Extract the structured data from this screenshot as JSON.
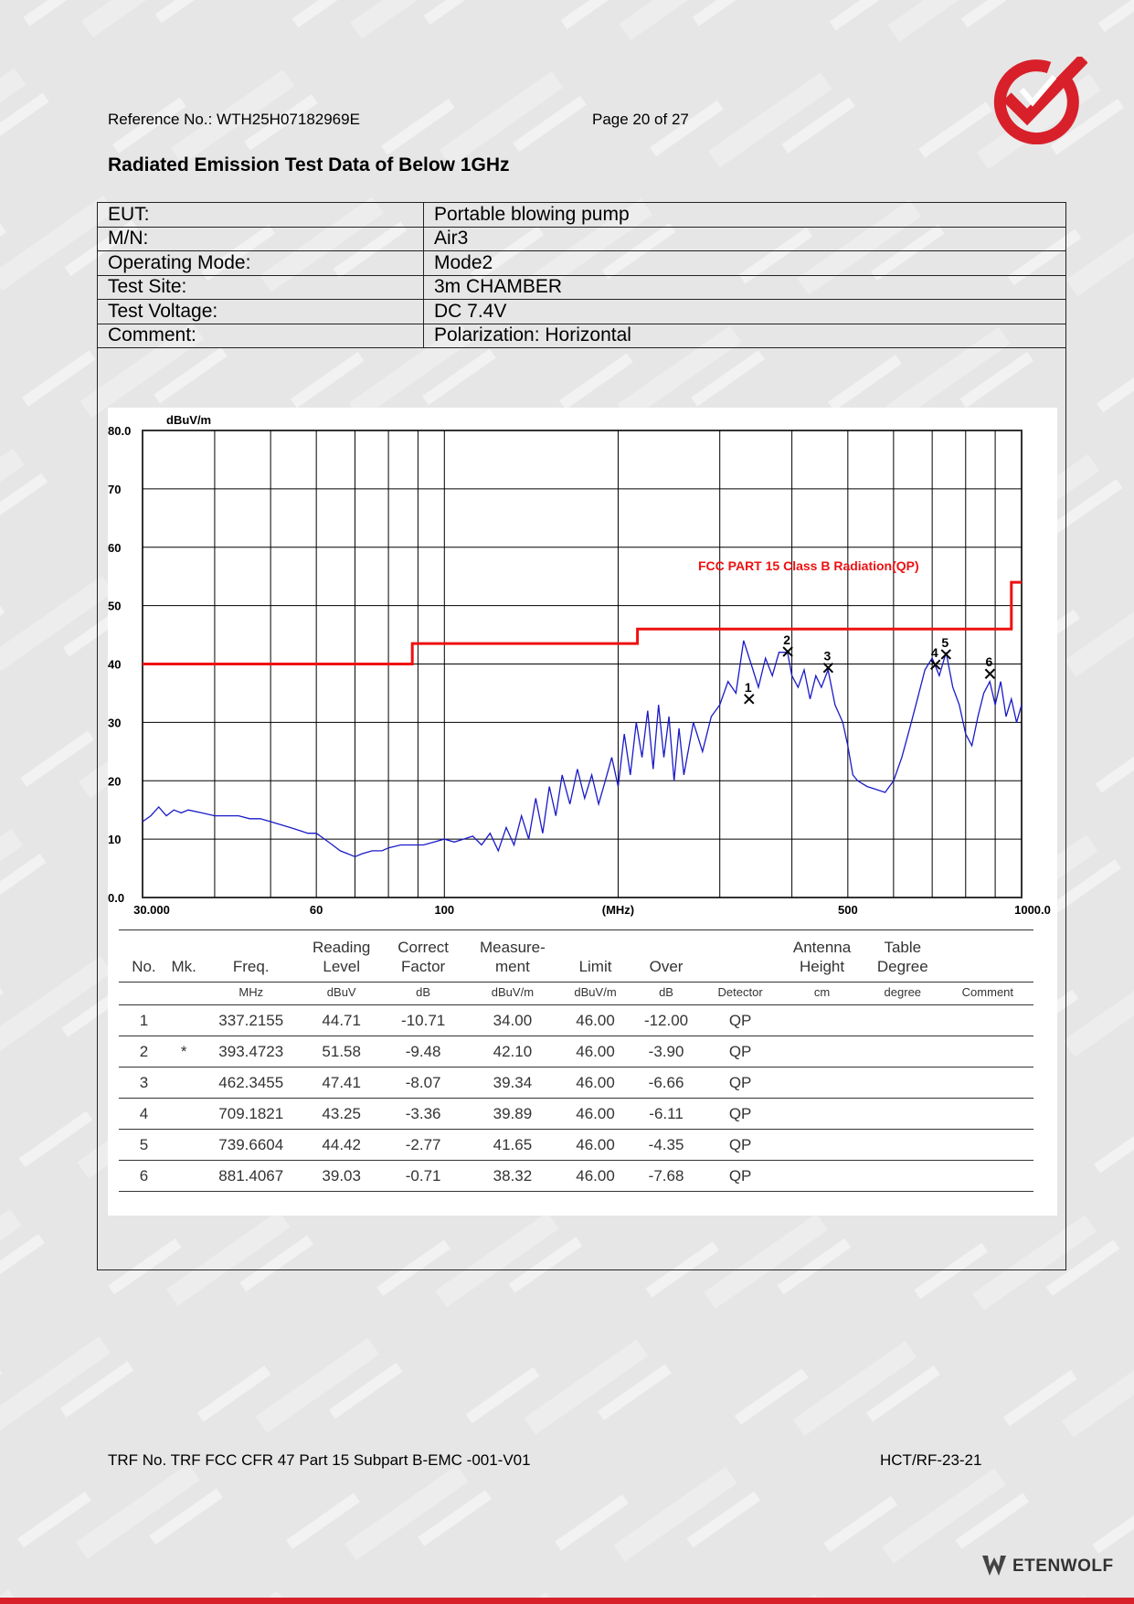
{
  "header": {
    "reference": "Reference No.: WTH25H07182969E",
    "page": "Page 20 of 27"
  },
  "title": "Radiated Emission Test Data of Below 1GHz",
  "info": [
    {
      "key": "EUT:",
      "value": "Portable blowing pump"
    },
    {
      "key": "M/N:",
      "value": "Air3"
    },
    {
      "key": "Operating Mode:",
      "value": "Mode2"
    },
    {
      "key": "Test Site:",
      "value": "3m CHAMBER"
    },
    {
      "key": "Test Voltage:",
      "value": "DC 7.4V"
    },
    {
      "key": "Comment:",
      "value": "Polarization: Horizontal"
    }
  ],
  "chart_data": {
    "type": "line",
    "ylabel": "dBuV/m",
    "xlabel": "(MHz)",
    "x_scale": "log",
    "xlim": [
      30,
      1000
    ],
    "ylim": [
      0,
      80
    ],
    "x_tick_labels": [
      "30.000",
      "60",
      "100",
      "(MHz)",
      "500",
      "1000.0"
    ],
    "x_tick_values": [
      30,
      60,
      100,
      200,
      500,
      1000
    ],
    "y_tick_labels": [
      "0.0",
      "10",
      "20",
      "30",
      "40",
      "50",
      "60",
      "70",
      "80.0"
    ],
    "y_tick_values": [
      0,
      10,
      20,
      30,
      40,
      50,
      60,
      70,
      80
    ],
    "limit_label": "FCC PART 15 Class B Radiation(QP)",
    "limit_color": "#ee1111",
    "trace_color": "#1a1ac8",
    "limit_line": [
      [
        30,
        40
      ],
      [
        88,
        40
      ],
      [
        88,
        43.5
      ],
      [
        216,
        43.5
      ],
      [
        216,
        46
      ],
      [
        960,
        46
      ],
      [
        960,
        54
      ],
      [
        1000,
        54
      ]
    ],
    "trace": [
      [
        30,
        13
      ],
      [
        31,
        14
      ],
      [
        32,
        15.5
      ],
      [
        33,
        14
      ],
      [
        34,
        15
      ],
      [
        35,
        14.5
      ],
      [
        36,
        15
      ],
      [
        38,
        14.5
      ],
      [
        40,
        14
      ],
      [
        42,
        14
      ],
      [
        44,
        14
      ],
      [
        46,
        13.5
      ],
      [
        48,
        13.5
      ],
      [
        50,
        13
      ],
      [
        52,
        12.5
      ],
      [
        54,
        12
      ],
      [
        56,
        11.5
      ],
      [
        58,
        11
      ],
      [
        60,
        11
      ],
      [
        62,
        10
      ],
      [
        64,
        9
      ],
      [
        66,
        8
      ],
      [
        68,
        7.5
      ],
      [
        70,
        7
      ],
      [
        72,
        7.5
      ],
      [
        75,
        8
      ],
      [
        78,
        8
      ],
      [
        80,
        8.5
      ],
      [
        84,
        9
      ],
      [
        88,
        9
      ],
      [
        92,
        9
      ],
      [
        96,
        9.5
      ],
      [
        100,
        10
      ],
      [
        104,
        9.5
      ],
      [
        108,
        10
      ],
      [
        112,
        10.5
      ],
      [
        116,
        9
      ],
      [
        120,
        11
      ],
      [
        124,
        8
      ],
      [
        128,
        12
      ],
      [
        132,
        9
      ],
      [
        136,
        14
      ],
      [
        140,
        10
      ],
      [
        144,
        17
      ],
      [
        148,
        11
      ],
      [
        152,
        19
      ],
      [
        156,
        14
      ],
      [
        160,
        21
      ],
      [
        165,
        16
      ],
      [
        170,
        22
      ],
      [
        175,
        17
      ],
      [
        180,
        21
      ],
      [
        185,
        16
      ],
      [
        190,
        20
      ],
      [
        195,
        24
      ],
      [
        200,
        19
      ],
      [
        205,
        28
      ],
      [
        210,
        21
      ],
      [
        215,
        30
      ],
      [
        220,
        24
      ],
      [
        225,
        32
      ],
      [
        230,
        22
      ],
      [
        235,
        33
      ],
      [
        240,
        24
      ],
      [
        245,
        31
      ],
      [
        250,
        20
      ],
      [
        255,
        29
      ],
      [
        260,
        21
      ],
      [
        270,
        30
      ],
      [
        280,
        25
      ],
      [
        290,
        31
      ],
      [
        300,
        33
      ],
      [
        310,
        37
      ],
      [
        320,
        35
      ],
      [
        330,
        44
      ],
      [
        340,
        40
      ],
      [
        350,
        36
      ],
      [
        360,
        41
      ],
      [
        370,
        38
      ],
      [
        380,
        42
      ],
      [
        393,
        42
      ],
      [
        400,
        38
      ],
      [
        410,
        36
      ],
      [
        420,
        39
      ],
      [
        430,
        34
      ],
      [
        440,
        38
      ],
      [
        450,
        36
      ],
      [
        462,
        39
      ],
      [
        475,
        33
      ],
      [
        490,
        30
      ],
      [
        500,
        26
      ],
      [
        510,
        21
      ],
      [
        520,
        20
      ],
      [
        540,
        19
      ],
      [
        560,
        18.5
      ],
      [
        580,
        18
      ],
      [
        600,
        20
      ],
      [
        620,
        24
      ],
      [
        640,
        29
      ],
      [
        660,
        34
      ],
      [
        680,
        39
      ],
      [
        700,
        41
      ],
      [
        720,
        38
      ],
      [
        740,
        42
      ],
      [
        760,
        36
      ],
      [
        780,
        33
      ],
      [
        800,
        28
      ],
      [
        820,
        26
      ],
      [
        840,
        31
      ],
      [
        860,
        35
      ],
      [
        881,
        37
      ],
      [
        900,
        33
      ],
      [
        920,
        37
      ],
      [
        940,
        31
      ],
      [
        960,
        34
      ],
      [
        980,
        30
      ],
      [
        1000,
        33
      ]
    ],
    "markers": [
      {
        "label": "1",
        "x": 337.2155,
        "y": 34.0
      },
      {
        "label": "2",
        "x": 393.4723,
        "y": 42.1
      },
      {
        "label": "3",
        "x": 462.3455,
        "y": 39.34
      },
      {
        "label": "4",
        "x": 709.1821,
        "y": 39.89
      },
      {
        "label": "5",
        "x": 739.6604,
        "y": 41.65
      },
      {
        "label": "6",
        "x": 881.4067,
        "y": 38.32
      }
    ]
  },
  "table": {
    "headers": [
      "No.",
      "Mk.",
      "Freq.",
      "Reading Level",
      "Correct Factor",
      "Measure- ment",
      "Limit",
      "Over",
      "",
      "Antenna Height",
      "Table Degree",
      ""
    ],
    "units": [
      "",
      "",
      "MHz",
      "dBuV",
      "dB",
      "dBuV/m",
      "dBuV/m",
      "dB",
      "Detector",
      "cm",
      "degree",
      "Comment"
    ],
    "rows": [
      [
        "1",
        "",
        "337.2155",
        "44.71",
        "-10.71",
        "34.00",
        "46.00",
        "-12.00",
        "QP",
        "",
        "",
        ""
      ],
      [
        "2",
        "*",
        "393.4723",
        "51.58",
        "-9.48",
        "42.10",
        "46.00",
        "-3.90",
        "QP",
        "",
        "",
        ""
      ],
      [
        "3",
        "",
        "462.3455",
        "47.41",
        "-8.07",
        "39.34",
        "46.00",
        "-6.66",
        "QP",
        "",
        "",
        ""
      ],
      [
        "4",
        "",
        "709.1821",
        "43.25",
        "-3.36",
        "39.89",
        "46.00",
        "-6.11",
        "QP",
        "",
        "",
        ""
      ],
      [
        "5",
        "",
        "739.6604",
        "44.42",
        "-2.77",
        "41.65",
        "46.00",
        "-4.35",
        "QP",
        "",
        "",
        ""
      ],
      [
        "6",
        "",
        "881.4067",
        "39.03",
        "-0.71",
        "38.32",
        "46.00",
        "-7.68",
        "QP",
        "",
        "",
        ""
      ]
    ]
  },
  "footer": {
    "trf": "TRF No. TRF FCC CFR 47 Part 15 Subpart B-EMC -001-V01",
    "code": "HCT/RF-23-21",
    "brand": "ETENWOLF"
  },
  "colors": {
    "accent": "#d8202a"
  },
  "icons": {
    "logo": "check-mark-logo-icon",
    "brand": "wolf-logo-icon"
  }
}
